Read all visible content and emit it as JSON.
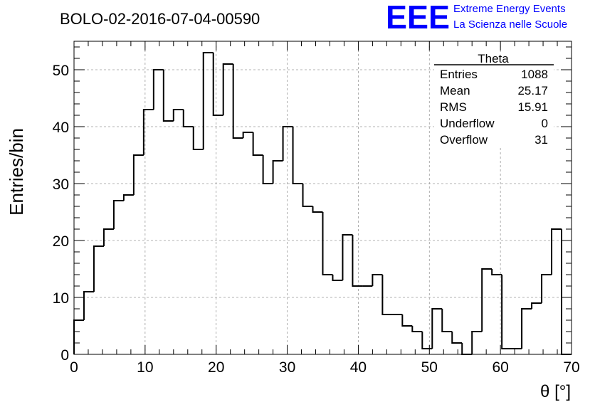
{
  "title": "BOLO-02-2016-07-04-00590",
  "logo": {
    "letters": "EEE",
    "line1": "Extreme Energy Events",
    "line2": "La Scienza nelle Scuole",
    "color": "#0000ff"
  },
  "stats": {
    "name": "Theta",
    "rows": [
      {
        "label": "Entries",
        "value": "1088"
      },
      {
        "label": "Mean",
        "value": "25.17"
      },
      {
        "label": "RMS",
        "value": "15.91"
      },
      {
        "label": "Underflow",
        "value": "0"
      },
      {
        "label": "Overflow",
        "value": "31"
      }
    ]
  },
  "chart_data": {
    "type": "bar",
    "xlabel": "θ [°]",
    "ylabel": "Entries/bin",
    "xlim": [
      0,
      70
    ],
    "ylim": [
      0,
      55
    ],
    "bin_width": 1.4,
    "grid": true,
    "x_ticks": [
      0,
      10,
      20,
      30,
      40,
      50,
      60,
      70
    ],
    "y_ticks": [
      0,
      10,
      20,
      30,
      40,
      50
    ],
    "values": [
      6,
      11,
      19,
      22,
      27,
      28,
      35,
      43,
      50,
      41,
      43,
      40,
      36,
      53,
      42,
      51,
      38,
      39,
      35,
      30,
      34,
      40,
      30,
      26,
      25,
      14,
      13,
      21,
      12,
      12,
      14,
      7,
      7,
      5,
      4,
      1,
      8,
      4,
      2,
      0,
      4,
      15,
      14,
      1,
      1,
      8,
      9,
      14,
      22,
      0
    ]
  }
}
